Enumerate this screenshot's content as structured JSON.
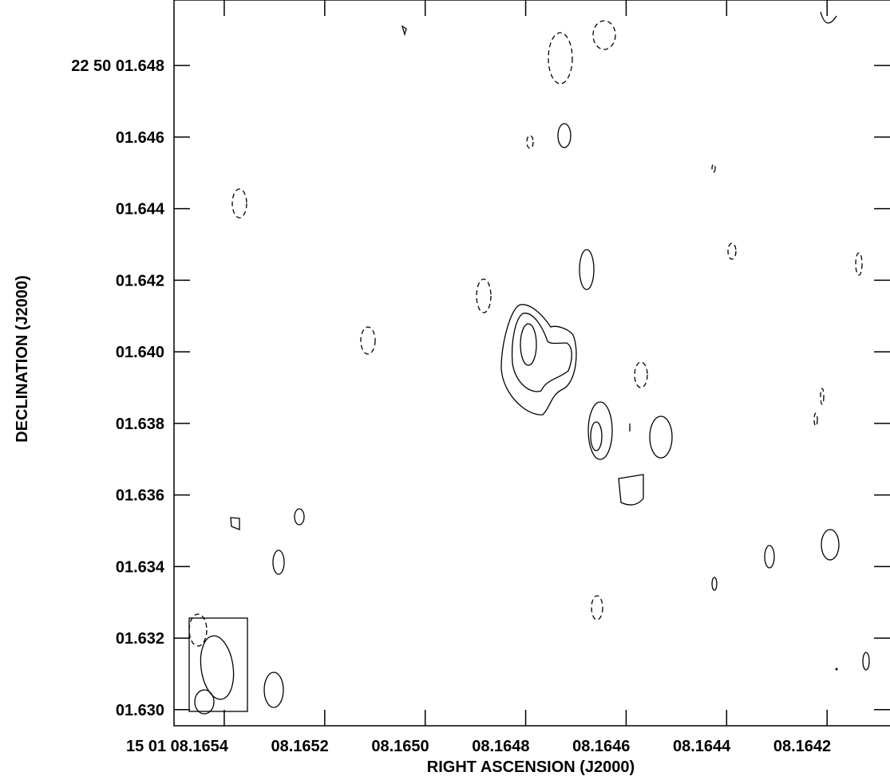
{
  "chart_data": {
    "type": "contour",
    "xlabel": "RIGHT ASCENSION (J2000)",
    "ylabel": "DECLINATION (J2000)",
    "xlim": [
      8.1655,
      8.16407
    ],
    "ylim": [
      1.62955,
      1.64983
    ],
    "xticks": [
      {
        "value": 8.1654,
        "label": "15 01 08.1654"
      },
      {
        "value": 8.1652,
        "label": "08.1652"
      },
      {
        "value": 8.165,
        "label": "08.1650"
      },
      {
        "value": 8.1648,
        "label": "08.1648"
      },
      {
        "value": 8.1646,
        "label": "08.1646"
      },
      {
        "value": 8.1644,
        "label": "08.1644"
      },
      {
        "value": 8.1642,
        "label": "08.1642"
      }
    ],
    "yticks": [
      {
        "value": 1.648,
        "label": "22 50 01.648"
      },
      {
        "value": 1.646,
        "label": "01.646"
      },
      {
        "value": 1.644,
        "label": "01.644"
      },
      {
        "value": 1.642,
        "label": "01.642"
      },
      {
        "value": 1.64,
        "label": "01.640"
      },
      {
        "value": 1.638,
        "label": "01.638"
      },
      {
        "value": 1.636,
        "label": "01.636"
      },
      {
        "value": 1.634,
        "label": "01.634"
      },
      {
        "value": 1.632,
        "label": "01.632"
      },
      {
        "value": 1.63,
        "label": "01.630"
      }
    ],
    "color": "#000000"
  }
}
